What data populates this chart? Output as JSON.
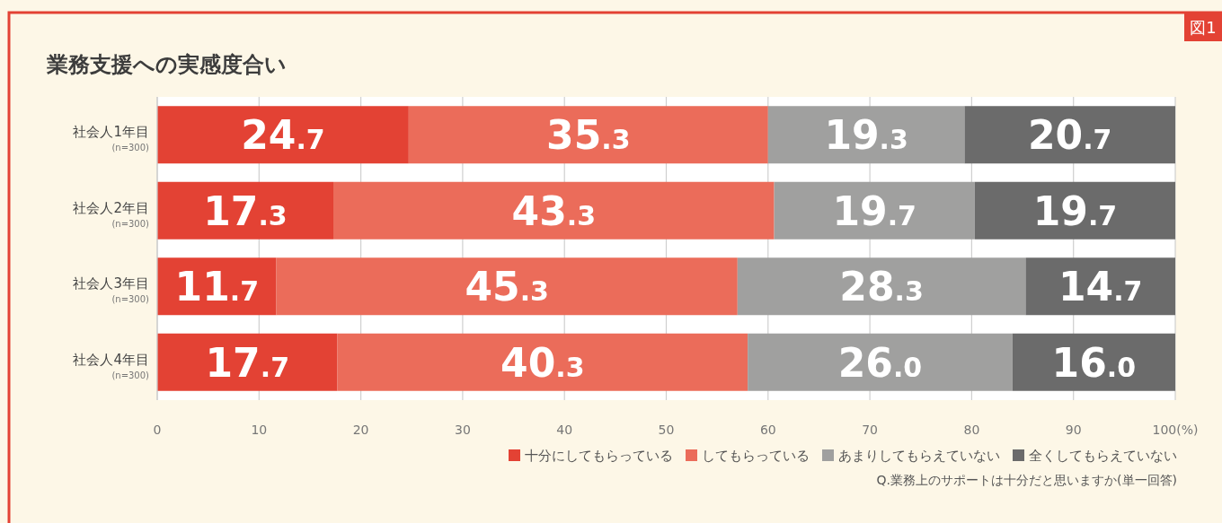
{
  "chart_data": {
    "type": "bar",
    "orientation": "horizontal",
    "stacked": true,
    "title": "業務支援への実感度合い",
    "categories": [
      "社会人1年目\n(n=300)",
      "社会人2年目\n(n=300)",
      "社会人3年目\n(n=300)",
      "社会人4年目\n(n=300)"
    ],
    "series": [
      {
        "name": "十分にしてもらっている",
        "color": "#e34234",
        "values": [
          24.7,
          17.3,
          11.7,
          17.7
        ],
        "value_labels": [
          "24.7",
          "17.3",
          "11.7",
          "17.7"
        ]
      },
      {
        "name": "してもらっている",
        "color": "#eb6c5a",
        "values": [
          35.3,
          43.3,
          45.3,
          40.3
        ],
        "value_labels": [
          "35.3",
          "43.3",
          "45.3",
          "40.3"
        ]
      },
      {
        "name": "あまりしてもらえていない",
        "color": "#a0a09f",
        "values": [
          19.3,
          19.7,
          28.3,
          26.0
        ],
        "value_labels": [
          "19.3",
          "19.7",
          "28.3",
          "26.0"
        ]
      },
      {
        "name": "全くしてもらえていない",
        "color": "#6b6b6b",
        "values": [
          20.7,
          19.7,
          14.7,
          16.0
        ],
        "value_labels": [
          "20.7",
          "19.7",
          "14.7",
          "16.0"
        ]
      }
    ],
    "xlim": [
      0,
      100
    ],
    "xticks": [
      0,
      10,
      20,
      30,
      40,
      50,
      60,
      70,
      80,
      90,
      {
        "value": 100,
        "label": "100(%)"
      }
    ],
    "grid": "x",
    "legend": "bottom right",
    "annotations": [
      "Q.業務上のサポートは十分だと思いますか(単一回答)",
      "図1"
    ]
  }
}
